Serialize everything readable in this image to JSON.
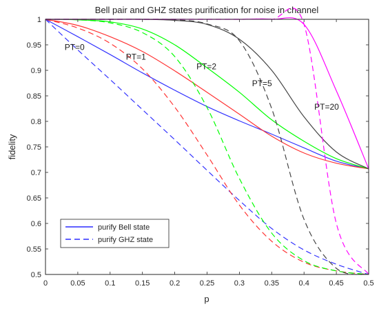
{
  "chart_data": {
    "type": "line",
    "title": "Bell pair and GHZ states purification for noise in channel",
    "xlabel": "p",
    "ylabel": "fidelity",
    "xlim": [
      0,
      0.5
    ],
    "ylim": [
      0.5,
      1
    ],
    "grid": false,
    "legend_position": "bottom-left",
    "x_ticks": [
      0,
      0.05,
      0.1,
      0.15,
      0.2,
      0.25,
      0.3,
      0.35,
      0.4,
      0.45,
      0.5
    ],
    "x_tick_labels": [
      "0",
      "0.05",
      "0.1",
      "0.15",
      "0.2",
      "0.25",
      "0.3",
      "0.35",
      "0.4",
      "0.45",
      "0.5"
    ],
    "y_ticks": [
      0.5,
      0.55,
      0.6,
      0.65,
      0.7,
      0.75,
      0.8,
      0.85,
      0.9,
      0.95,
      1
    ],
    "y_tick_labels": [
      "0.5",
      "0.55",
      "0.6",
      "0.65",
      "0.7",
      "0.75",
      "0.8",
      "0.85",
      "0.9",
      "0.95",
      "1"
    ],
    "legend": [
      {
        "label": "purify Bell state",
        "style": "solid",
        "color": "#0000ff"
      },
      {
        "label": "purify GHZ state",
        "style": "dashed",
        "color": "#0000ff"
      }
    ],
    "annotations": [
      {
        "text": "PT=0",
        "x": 0.045,
        "y": 0.94
      },
      {
        "text": "PT=1",
        "x": 0.14,
        "y": 0.921
      },
      {
        "text": "PT=2",
        "x": 0.249,
        "y": 0.902
      },
      {
        "text": "PT=5",
        "x": 0.335,
        "y": 0.869
      },
      {
        "text": "PT=20",
        "x": 0.435,
        "y": 0.823
      }
    ],
    "series": [
      {
        "color": "#3333ff",
        "style": "solid",
        "group": "PT=0",
        "x": [
          0,
          0.05,
          0.1,
          0.15,
          0.2,
          0.25,
          0.3,
          0.35,
          0.4,
          0.45,
          0.5
        ],
        "y": [
          1.0,
          0.966,
          0.931,
          0.895,
          0.861,
          0.829,
          0.801,
          0.775,
          0.748,
          0.722,
          0.707
        ]
      },
      {
        "color": "#3333ff",
        "style": "dashed",
        "group": "PT=0",
        "x": [
          0,
          0.05,
          0.1,
          0.15,
          0.2,
          0.25,
          0.3,
          0.35,
          0.4,
          0.45,
          0.5
        ],
        "y": [
          1.0,
          0.94,
          0.882,
          0.823,
          0.764,
          0.704,
          0.645,
          0.59,
          0.548,
          0.52,
          0.5
        ]
      },
      {
        "color": "#ff3333",
        "style": "solid",
        "group": "PT=1",
        "x": [
          0,
          0.05,
          0.1,
          0.15,
          0.2,
          0.25,
          0.3,
          0.35,
          0.4,
          0.45,
          0.5
        ],
        "y": [
          1.0,
          0.988,
          0.966,
          0.937,
          0.899,
          0.857,
          0.814,
          0.771,
          0.738,
          0.718,
          0.707
        ]
      },
      {
        "color": "#ff3333",
        "style": "dashed",
        "group": "PT=1",
        "x": [
          0,
          0.05,
          0.1,
          0.15,
          0.2,
          0.25,
          0.3,
          0.35,
          0.4,
          0.45,
          0.5
        ],
        "y": [
          1.0,
          0.983,
          0.953,
          0.903,
          0.828,
          0.734,
          0.636,
          0.565,
          0.524,
          0.507,
          0.5
        ]
      },
      {
        "color": "#00ff00",
        "style": "solid",
        "group": "PT=2",
        "x": [
          0,
          0.05,
          0.1,
          0.15,
          0.2,
          0.25,
          0.3,
          0.35,
          0.4,
          0.45,
          0.5
        ],
        "y": [
          1.0,
          0.999,
          0.995,
          0.981,
          0.95,
          0.905,
          0.857,
          0.803,
          0.761,
          0.727,
          0.707
        ]
      },
      {
        "color": "#00ff00",
        "style": "dashed",
        "group": "PT=2",
        "x": [
          0,
          0.05,
          0.1,
          0.15,
          0.2,
          0.25,
          0.3,
          0.35,
          0.4,
          0.45,
          0.5
        ],
        "y": [
          1.0,
          0.999,
          0.993,
          0.974,
          0.927,
          0.827,
          0.688,
          0.581,
          0.527,
          0.507,
          0.5
        ]
      },
      {
        "color": "#444444",
        "style": "solid",
        "group": "PT=5",
        "x": [
          0,
          0.05,
          0.1,
          0.15,
          0.2,
          0.25,
          0.3,
          0.35,
          0.4,
          0.45,
          0.5
        ],
        "y": [
          1.0,
          1.0,
          1.0,
          1.0,
          0.998,
          0.99,
          0.961,
          0.9,
          0.809,
          0.74,
          0.707
        ]
      },
      {
        "color": "#444444",
        "style": "dashed",
        "group": "PT=5",
        "x": [
          0,
          0.05,
          0.1,
          0.15,
          0.2,
          0.25,
          0.3,
          0.35,
          0.4,
          0.45,
          0.5
        ],
        "y": [
          1.0,
          1.0,
          1.0,
          1.0,
          0.999,
          0.991,
          0.958,
          0.825,
          0.608,
          0.512,
          0.5
        ]
      },
      {
        "color": "#ff00ff",
        "style": "solid",
        "group": "PT=20",
        "x": [
          0,
          0.05,
          0.1,
          0.15,
          0.2,
          0.25,
          0.3,
          0.35,
          0.4,
          0.45,
          0.5
        ],
        "y": [
          1.0,
          1.0,
          1.0,
          1.0,
          1.0,
          1.0,
          1.0,
          1.0,
          0.99,
          0.86,
          0.707
        ]
      },
      {
        "color": "#ff00ff",
        "style": "dashed",
        "group": "PT=20",
        "x": [
          0,
          0.05,
          0.1,
          0.15,
          0.2,
          0.25,
          0.3,
          0.35,
          0.4,
          0.45,
          0.5
        ],
        "y": [
          1.0,
          1.0,
          1.0,
          1.0,
          1.0,
          1.0,
          1.0,
          1.0,
          0.99,
          0.6,
          0.5
        ]
      }
    ]
  }
}
